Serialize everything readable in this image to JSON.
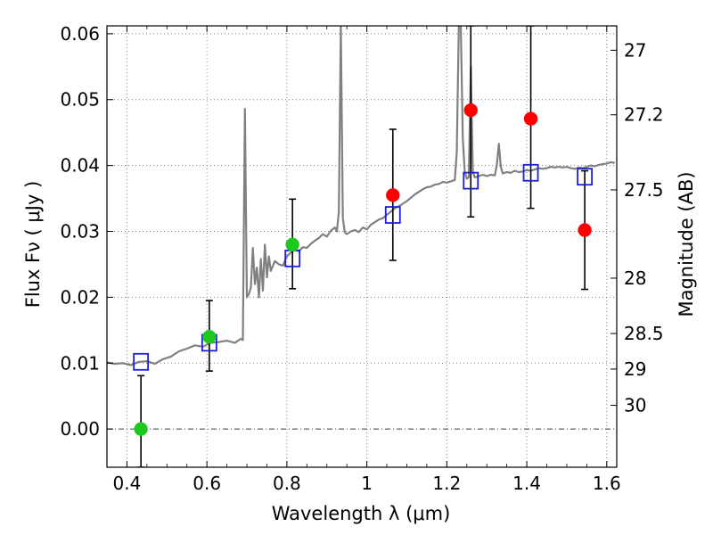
{
  "chart_data": {
    "type": "scatter",
    "xlabel": "Wavelength  λ (μm)",
    "ylabel": "Flux  Fν  ( μJy )",
    "ylabel_right": "Magnitude (AB)",
    "xlim": [
      0.35,
      1.625
    ],
    "ylim": [
      -0.0058,
      0.0612
    ],
    "grid": true,
    "x_ticks": [
      {
        "value": 0.4,
        "label": "0.4"
      },
      {
        "value": 0.6,
        "label": "0.6"
      },
      {
        "value": 0.8,
        "label": "0.8"
      },
      {
        "value": 1.0,
        "label": "1"
      },
      {
        "value": 1.2,
        "label": "1.2"
      },
      {
        "value": 1.4,
        "label": "1.4"
      },
      {
        "value": 1.6,
        "label": "1.6"
      }
    ],
    "y_ticks": [
      {
        "value": 0.0,
        "label": "0.00"
      },
      {
        "value": 0.01,
        "label": "0.01"
      },
      {
        "value": 0.02,
        "label": "0.02"
      },
      {
        "value": 0.03,
        "label": "0.03"
      },
      {
        "value": 0.04,
        "label": "0.04"
      },
      {
        "value": 0.05,
        "label": "0.05"
      },
      {
        "value": 0.06,
        "label": "0.06"
      }
    ],
    "right_ticks": [
      {
        "flux": 0.0575,
        "label": "27"
      },
      {
        "flux": 0.0477,
        "label": "27.2"
      },
      {
        "flux": 0.0363,
        "label": "27.5"
      },
      {
        "flux": 0.0229,
        "label": "28"
      },
      {
        "flux": 0.0145,
        "label": "28.5"
      },
      {
        "flux": 0.0091,
        "label": "29"
      },
      {
        "flux": 0.0036,
        "label": "30"
      }
    ],
    "series": [
      {
        "kind": "spectrum",
        "color": "#808080",
        "points": [
          [
            0.35,
            0.0101
          ],
          [
            0.37,
            0.0099
          ],
          [
            0.39,
            0.01
          ],
          [
            0.41,
            0.0097
          ],
          [
            0.43,
            0.0102
          ],
          [
            0.45,
            0.0103
          ],
          [
            0.47,
            0.0099
          ],
          [
            0.49,
            0.0106
          ],
          [
            0.51,
            0.011
          ],
          [
            0.53,
            0.0118
          ],
          [
            0.55,
            0.0122
          ],
          [
            0.57,
            0.0127
          ],
          [
            0.59,
            0.0125
          ],
          [
            0.61,
            0.0131
          ],
          [
            0.63,
            0.0132
          ],
          [
            0.65,
            0.0134
          ],
          [
            0.67,
            0.0131
          ],
          [
            0.685,
            0.0137
          ],
          [
            0.69,
            0.0135
          ],
          [
            0.695,
            0.0486
          ],
          [
            0.7,
            0.02
          ],
          [
            0.705,
            0.0205
          ],
          [
            0.71,
            0.0215
          ],
          [
            0.715,
            0.0275
          ],
          [
            0.72,
            0.022
          ],
          [
            0.725,
            0.0245
          ],
          [
            0.73,
            0.02
          ],
          [
            0.735,
            0.0258
          ],
          [
            0.74,
            0.021
          ],
          [
            0.745,
            0.028
          ],
          [
            0.75,
            0.023
          ],
          [
            0.755,
            0.0262
          ],
          [
            0.76,
            0.024
          ],
          [
            0.77,
            0.0255
          ],
          [
            0.78,
            0.025
          ],
          [
            0.79,
            0.0248
          ],
          [
            0.8,
            0.0262
          ],
          [
            0.81,
            0.0268
          ],
          [
            0.82,
            0.0272
          ],
          [
            0.83,
            0.027
          ],
          [
            0.84,
            0.0276
          ],
          [
            0.85,
            0.0275
          ],
          [
            0.86,
            0.0281
          ],
          [
            0.87,
            0.0286
          ],
          [
            0.88,
            0.029
          ],
          [
            0.89,
            0.0296
          ],
          [
            0.9,
            0.0292
          ],
          [
            0.91,
            0.0301
          ],
          [
            0.92,
            0.0306
          ],
          [
            0.925,
            0.03
          ],
          [
            0.93,
            0.033
          ],
          [
            0.935,
            0.0612
          ],
          [
            0.94,
            0.032
          ],
          [
            0.945,
            0.0298
          ],
          [
            0.95,
            0.0296
          ],
          [
            0.96,
            0.03
          ],
          [
            0.97,
            0.0302
          ],
          [
            0.98,
            0.0299
          ],
          [
            0.99,
            0.0306
          ],
          [
            1.0,
            0.0303
          ],
          [
            1.01,
            0.031
          ],
          [
            1.02,
            0.0314
          ],
          [
            1.03,
            0.0318
          ],
          [
            1.04,
            0.032
          ],
          [
            1.05,
            0.0325
          ],
          [
            1.06,
            0.033
          ],
          [
            1.07,
            0.0335
          ],
          [
            1.08,
            0.0338
          ],
          [
            1.09,
            0.0342
          ],
          [
            1.1,
            0.0346
          ],
          [
            1.11,
            0.0351
          ],
          [
            1.12,
            0.0356
          ],
          [
            1.13,
            0.036
          ],
          [
            1.14,
            0.0364
          ],
          [
            1.15,
            0.0367
          ],
          [
            1.16,
            0.0368
          ],
          [
            1.17,
            0.0371
          ],
          [
            1.18,
            0.0372
          ],
          [
            1.19,
            0.0375
          ],
          [
            1.2,
            0.0374
          ],
          [
            1.21,
            0.0376
          ],
          [
            1.22,
            0.0378
          ],
          [
            1.225,
            0.042
          ],
          [
            1.23,
            0.0612
          ],
          [
            1.235,
            0.0612
          ],
          [
            1.24,
            0.044
          ],
          [
            1.245,
            0.039
          ],
          [
            1.25,
            0.038
          ],
          [
            1.255,
            0.0382
          ],
          [
            1.26,
            0.055
          ],
          [
            1.265,
            0.039
          ],
          [
            1.27,
            0.0382
          ],
          [
            1.28,
            0.0384
          ],
          [
            1.29,
            0.0386
          ],
          [
            1.3,
            0.0384
          ],
          [
            1.31,
            0.0386
          ],
          [
            1.32,
            0.0385
          ],
          [
            1.325,
            0.04
          ],
          [
            1.33,
            0.0433
          ],
          [
            1.335,
            0.0398
          ],
          [
            1.34,
            0.0388
          ],
          [
            1.35,
            0.039
          ],
          [
            1.36,
            0.0389
          ],
          [
            1.37,
            0.0392
          ],
          [
            1.38,
            0.039
          ],
          [
            1.39,
            0.0391
          ],
          [
            1.4,
            0.0393
          ],
          [
            1.41,
            0.0392
          ],
          [
            1.42,
            0.0394
          ],
          [
            1.43,
            0.0396
          ],
          [
            1.44,
            0.0395
          ],
          [
            1.45,
            0.0396
          ],
          [
            1.46,
            0.0398
          ],
          [
            1.47,
            0.0397
          ],
          [
            1.48,
            0.0398
          ],
          [
            1.49,
            0.0397
          ],
          [
            1.5,
            0.0398
          ],
          [
            1.51,
            0.0396
          ],
          [
            1.52,
            0.0395
          ],
          [
            1.53,
            0.0397
          ],
          [
            1.54,
            0.0396
          ],
          [
            1.55,
            0.0398
          ],
          [
            1.56,
            0.04
          ],
          [
            1.57,
            0.0399
          ],
          [
            1.58,
            0.0401
          ],
          [
            1.59,
            0.0402
          ],
          [
            1.6,
            0.0403
          ],
          [
            1.61,
            0.0405
          ],
          [
            1.62,
            0.0404
          ]
        ]
      },
      {
        "kind": "model-photometry",
        "marker": "open-square",
        "color": "#1f1fd6",
        "points": [
          {
            "x": 0.435,
            "y": 0.0102
          },
          {
            "x": 0.606,
            "y": 0.0131
          },
          {
            "x": 0.814,
            "y": 0.0259
          },
          {
            "x": 1.065,
            "y": 0.0325
          },
          {
            "x": 1.26,
            "y": 0.0377
          },
          {
            "x": 1.41,
            "y": 0.0389
          },
          {
            "x": 1.545,
            "y": 0.0383
          }
        ]
      },
      {
        "kind": "observed-photometry",
        "marker": "filled-circle",
        "points": [
          {
            "x": 0.435,
            "y": 0.0,
            "err_low": 0.0058,
            "err_high": 0.0081,
            "color": "#1ec81e"
          },
          {
            "x": 0.606,
            "y": 0.014,
            "err_low": 0.0052,
            "err_high": 0.0055,
            "color": "#1ec81e"
          },
          {
            "x": 0.814,
            "y": 0.028,
            "err_low": 0.0067,
            "err_high": 0.0069,
            "color": "#1ec81e"
          },
          {
            "x": 1.065,
            "y": 0.0355,
            "err_low": 0.0099,
            "err_high": 0.01,
            "color": "#ff0000"
          },
          {
            "x": 1.26,
            "y": 0.0484,
            "err_low": 0.0162,
            "err_high": 0.0128,
            "color": "#ff0000"
          },
          {
            "x": 1.41,
            "y": 0.0471,
            "err_low": 0.0136,
            "err_high": 0.0141,
            "color": "#ff0000"
          },
          {
            "x": 1.545,
            "y": 0.0302,
            "err_low": 0.009,
            "err_high": 0.009,
            "color": "#ff0000"
          }
        ]
      }
    ],
    "colors": {
      "axis": "#000000",
      "grid": "#808080",
      "spectrum": "#808080",
      "square": "#1f1fd6",
      "zero_line": "#404040"
    }
  }
}
